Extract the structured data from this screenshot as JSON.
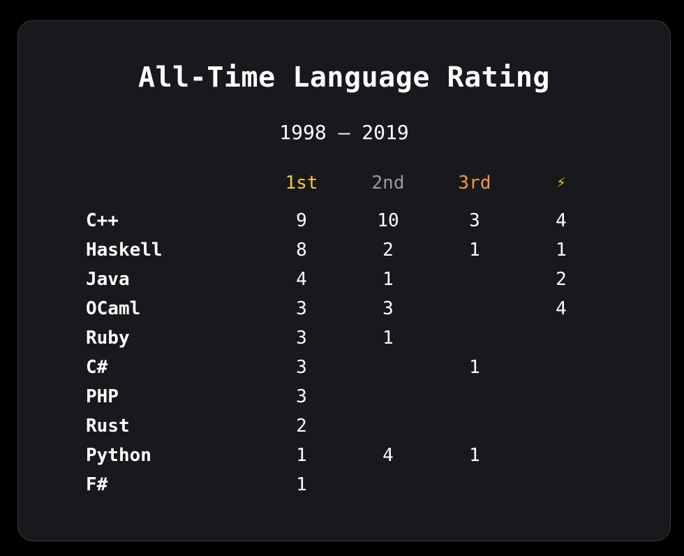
{
  "title": "All-Time Language Rating",
  "subtitle": "1998 — 2019",
  "columns": [
    "1st",
    "2nd",
    "3rd",
    "⚡"
  ],
  "rows": [
    {
      "lang": "C++",
      "first": "9",
      "second": "10",
      "third": "3",
      "bolt": "4"
    },
    {
      "lang": "Haskell",
      "first": "8",
      "second": "2",
      "third": "1",
      "bolt": "1"
    },
    {
      "lang": "Java",
      "first": "4",
      "second": "1",
      "third": "",
      "bolt": "2"
    },
    {
      "lang": "OCaml",
      "first": "3",
      "second": "3",
      "third": "",
      "bolt": "4"
    },
    {
      "lang": "Ruby",
      "first": "3",
      "second": "1",
      "third": "",
      "bolt": ""
    },
    {
      "lang": "C#",
      "first": "3",
      "second": "",
      "third": "1",
      "bolt": ""
    },
    {
      "lang": "PHP",
      "first": "3",
      "second": "",
      "third": "",
      "bolt": ""
    },
    {
      "lang": "Rust",
      "first": "2",
      "second": "",
      "third": "",
      "bolt": ""
    },
    {
      "lang": "Python",
      "first": "1",
      "second": "4",
      "third": "1",
      "bolt": ""
    },
    {
      "lang": "F#",
      "first": "1",
      "second": "",
      "third": "",
      "bolt": ""
    }
  ],
  "colors": {
    "first": "#f2c744",
    "second": "#9a9a9a",
    "third": "#ee9a3a",
    "background": "#18191c"
  }
}
